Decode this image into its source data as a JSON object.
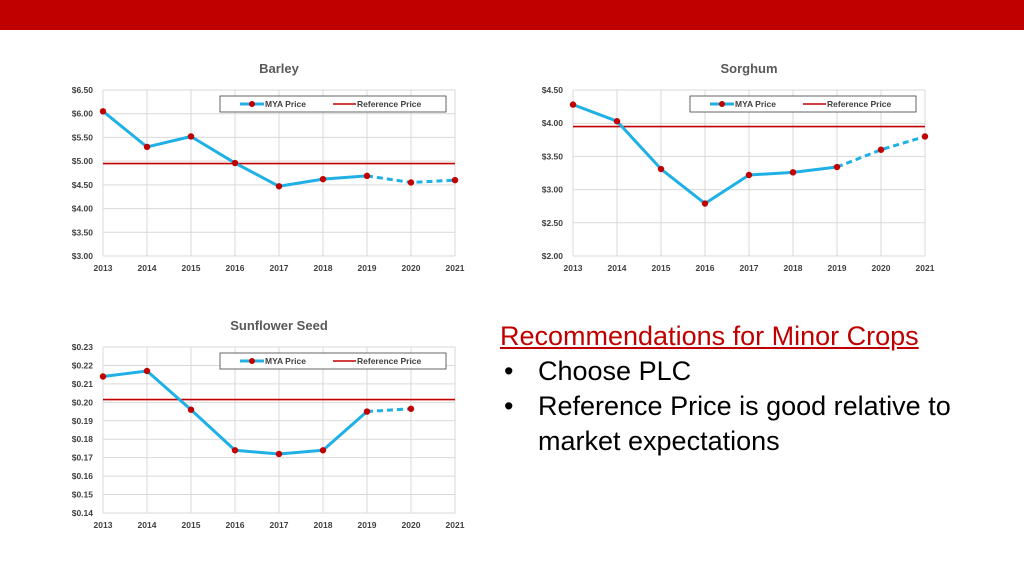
{
  "theme": {
    "top_bar_color": "#c00000",
    "mya_color": "#1fb0e6",
    "point_color": "#c00000",
    "reference_color": "#c00000",
    "grid_color": "#d9d9d9"
  },
  "slide": {
    "heading": "Recommendations for Minor Crops",
    "bullets": [
      "Choose PLC",
      "Reference Price is good relative to market expectations"
    ]
  },
  "chart_data": [
    {
      "id": "barley",
      "type": "line",
      "title": "Barley",
      "x": [
        "2013",
        "2014",
        "2015",
        "2016",
        "2017",
        "2018",
        "2019",
        "2020",
        "2021"
      ],
      "ylim": [
        3.0,
        6.5
      ],
      "yticks": [
        3.0,
        3.5,
        4.0,
        4.5,
        5.0,
        5.5,
        6.0,
        6.5
      ],
      "ytick_labels": [
        "$3.00",
        "$3.50",
        "$4.00",
        "$4.50",
        "$5.00",
        "$5.50",
        "$6.00",
        "$6.50"
      ],
      "grid": true,
      "legend_position": "top-right",
      "series": [
        {
          "name": "MYA Price",
          "values": [
            6.05,
            5.3,
            5.52,
            4.96,
            4.47,
            4.62,
            4.69,
            4.55,
            4.6
          ],
          "projected_from_index": 6
        },
        {
          "name": "Reference Price",
          "reference_line": 4.95
        }
      ]
    },
    {
      "id": "sorghum",
      "type": "line",
      "title": "Sorghum",
      "x": [
        "2013",
        "2014",
        "2015",
        "2016",
        "2017",
        "2018",
        "2019",
        "2020",
        "2021"
      ],
      "ylim": [
        2.0,
        4.5
      ],
      "yticks": [
        2.0,
        2.5,
        3.0,
        3.5,
        4.0,
        4.5
      ],
      "ytick_labels": [
        "$2.00",
        "$2.50",
        "$3.00",
        "$3.50",
        "$4.00",
        "$4.50"
      ],
      "grid": true,
      "legend_position": "top-right",
      "series": [
        {
          "name": "MYA Price",
          "values": [
            4.28,
            4.03,
            3.31,
            2.79,
            3.22,
            3.26,
            3.34,
            3.6,
            3.8
          ],
          "projected_from_index": 6
        },
        {
          "name": "Reference Price",
          "reference_line": 3.95
        }
      ]
    },
    {
      "id": "sunflower",
      "type": "line",
      "title": "Sunflower Seed",
      "x": [
        "2013",
        "2014",
        "2015",
        "2016",
        "2017",
        "2018",
        "2019",
        "2020",
        "2021"
      ],
      "ylim": [
        0.14,
        0.23
      ],
      "yticks": [
        0.14,
        0.15,
        0.16,
        0.17,
        0.18,
        0.19,
        0.2,
        0.21,
        0.22,
        0.23
      ],
      "ytick_labels": [
        "$0.14",
        "$0.15",
        "$0.16",
        "$0.17",
        "$0.18",
        "$0.19",
        "$0.20",
        "$0.21",
        "$0.22",
        "$0.23"
      ],
      "grid": true,
      "legend_position": "top-right",
      "series": [
        {
          "name": "MYA Price",
          "values": [
            0.214,
            0.217,
            0.196,
            0.174,
            0.172,
            0.174,
            0.195,
            0.1965,
            null
          ],
          "projected_from_index": 6
        },
        {
          "name": "Reference Price",
          "reference_line": 0.2015
        }
      ]
    }
  ]
}
